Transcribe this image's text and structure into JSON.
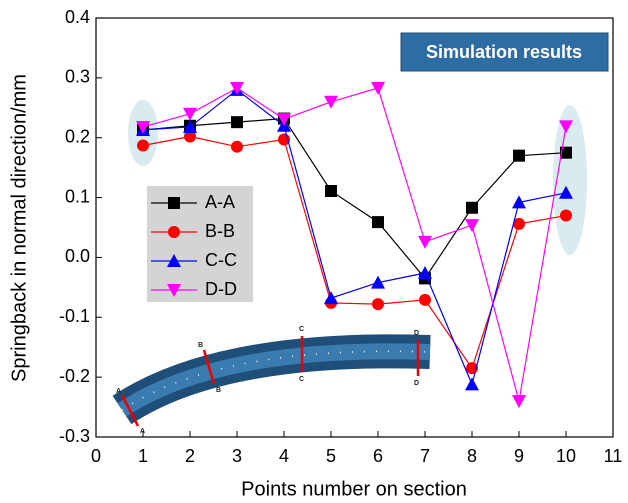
{
  "chart_data": {
    "type": "line",
    "xlabel": "Points number on section",
    "ylabel": "Springback in normal direction/mm",
    "annotation": "Simulation results",
    "part_section_labels": [
      "A",
      "B",
      "C",
      "D"
    ],
    "x": [
      1,
      2,
      3,
      4,
      5,
      6,
      7,
      8,
      9,
      10
    ],
    "xlim": [
      0,
      11
    ],
    "xticks": [
      0,
      1,
      2,
      3,
      4,
      5,
      6,
      7,
      8,
      9,
      10,
      11
    ],
    "ylim": [
      -0.3,
      0.4
    ],
    "yticks": [
      -0.3,
      -0.2,
      -0.1,
      {
        "value": 0,
        "label": "0.0"
      },
      0.1,
      0.2,
      0.3,
      0.4
    ],
    "legend": "center-left",
    "series": [
      {
        "name": "A-A",
        "color": "#000000",
        "marker": "square",
        "values": [
          0.213,
          0.22,
          0.226,
          0.232,
          0.111,
          0.059,
          -0.035,
          0.083,
          0.17,
          0.175
        ]
      },
      {
        "name": "B-B",
        "color": "#ff0000",
        "marker": "circle",
        "values": [
          0.187,
          0.202,
          0.185,
          0.197,
          -0.076,
          -0.078,
          -0.071,
          -0.185,
          0.056,
          0.07
        ]
      },
      {
        "name": "C-C",
        "color": "#0000ff",
        "marker": "triangle-up",
        "values": [
          0.213,
          0.218,
          0.28,
          0.22,
          -0.068,
          -0.042,
          -0.026,
          -0.212,
          0.092,
          0.108
        ]
      },
      {
        "name": "D-D",
        "color": "#ff00ff",
        "marker": "triangle-down",
        "values": [
          0.218,
          0.24,
          0.283,
          0.231,
          0.26,
          0.283,
          0.026,
          0.054,
          -0.24,
          0.219
        ]
      }
    ]
  }
}
